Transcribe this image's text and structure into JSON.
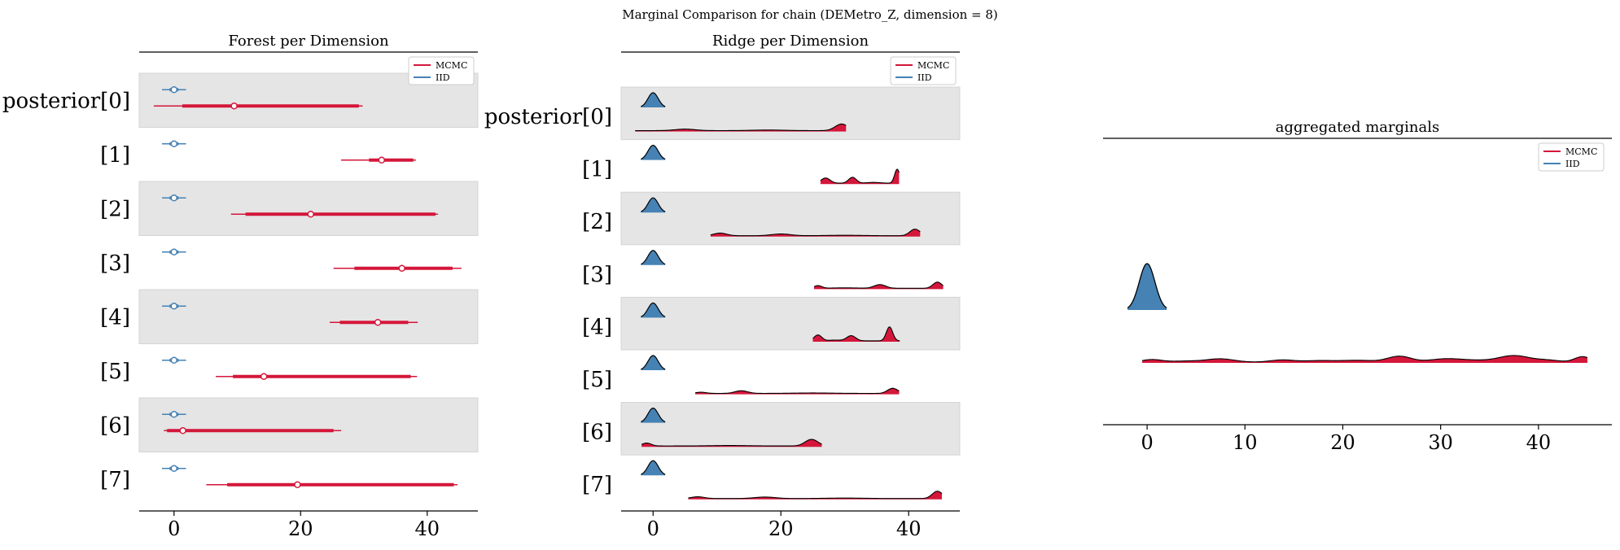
{
  "figure": {
    "suptitle": "Marginal Comparison for chain (DEMetro_Z, dimension = 8)"
  },
  "colors": {
    "mcmc": "#d4173a",
    "iid": "#4682b4",
    "band": "#e5e5e5",
    "axis": "#000000"
  },
  "chart_data": [
    {
      "type": "forest",
      "title": "Forest per Dimension",
      "row_labels": [
        "posterior[0]",
        "[1]",
        "[2]",
        "[3]",
        "[4]",
        "[5]",
        "[6]",
        "[7]"
      ],
      "xlim": [
        -5.5,
        48
      ],
      "xticks": [
        0,
        20,
        40
      ],
      "legend": {
        "entries": [
          "MCMC",
          "IID"
        ],
        "placement": "upper-right"
      },
      "series": [
        {
          "name": "MCMC",
          "color_key": "mcmc",
          "rows": [
            {
              "median": 9.5,
              "hdi_50": [
                1.3,
                29.2
              ],
              "hdi_94": [
                -3.2,
                29.8
              ]
            },
            {
              "median": 32.8,
              "hdi_50": [
                30.8,
                37.8
              ],
              "hdi_94": [
                26.4,
                38.2
              ]
            },
            {
              "median": 21.6,
              "hdi_50": [
                11.3,
                41.3
              ],
              "hdi_94": [
                9.0,
                41.7
              ]
            },
            {
              "median": 36.0,
              "hdi_50": [
                28.5,
                44.0
              ],
              "hdi_94": [
                25.2,
                45.4
              ]
            },
            {
              "median": 32.2,
              "hdi_50": [
                26.2,
                37.0
              ],
              "hdi_94": [
                24.6,
                38.5
              ]
            },
            {
              "median": 14.2,
              "hdi_50": [
                9.3,
                37.4
              ],
              "hdi_94": [
                6.6,
                38.4
              ]
            },
            {
              "median": 1.4,
              "hdi_50": [
                -1.1,
                25.2
              ],
              "hdi_94": [
                -1.6,
                26.4
              ]
            },
            {
              "median": 19.5,
              "hdi_50": [
                8.4,
                44.2
              ],
              "hdi_94": [
                5.1,
                44.8
              ]
            }
          ]
        },
        {
          "name": "IID",
          "color_key": "iid",
          "rows": [
            {
              "median": 0.0,
              "hdi_50": [
                -0.7,
                0.7
              ],
              "hdi_94": [
                -1.9,
                1.9
              ]
            },
            {
              "median": 0.0,
              "hdi_50": [
                -0.7,
                0.7
              ],
              "hdi_94": [
                -1.9,
                1.9
              ]
            },
            {
              "median": 0.0,
              "hdi_50": [
                -0.7,
                0.7
              ],
              "hdi_94": [
                -1.9,
                1.9
              ]
            },
            {
              "median": 0.0,
              "hdi_50": [
                -0.7,
                0.7
              ],
              "hdi_94": [
                -1.9,
                1.9
              ]
            },
            {
              "median": 0.0,
              "hdi_50": [
                -0.7,
                0.7
              ],
              "hdi_94": [
                -1.9,
                1.9
              ]
            },
            {
              "median": 0.0,
              "hdi_50": [
                -0.7,
                0.7
              ],
              "hdi_94": [
                -1.9,
                1.9
              ]
            },
            {
              "median": 0.0,
              "hdi_50": [
                -0.7,
                0.7
              ],
              "hdi_94": [
                -1.9,
                1.9
              ]
            },
            {
              "median": 0.0,
              "hdi_50": [
                -0.7,
                0.7
              ],
              "hdi_94": [
                -1.9,
                1.9
              ]
            }
          ]
        }
      ]
    },
    {
      "type": "ridge",
      "title": "Ridge per Dimension",
      "row_labels": [
        "posterior[0]",
        "[1]",
        "[2]",
        "[3]",
        "[4]",
        "[5]",
        "[6]",
        "[7]"
      ],
      "xlim": [
        -5,
        48
      ],
      "xticks": [
        0,
        20,
        40
      ],
      "legend": {
        "entries": [
          "MCMC",
          "IID"
        ],
        "placement": "upper-right"
      },
      "iid_density": {
        "mean": 0,
        "sd": 0.8,
        "range": [
          -1.9,
          1.9
        ]
      },
      "mcmc_rows": [
        {
          "range": [
            -2.8,
            30.2
          ],
          "bumps": [
            [
              5,
              1.6,
              0.1
            ],
            [
              29.5,
              1.0,
              0.45
            ],
            [
              18,
              2.5,
              0.04
            ]
          ]
        },
        {
          "range": [
            26.2,
            38.5
          ],
          "bumps": [
            [
              27.0,
              0.7,
              0.35
            ],
            [
              31.2,
              0.6,
              0.4
            ],
            [
              38.2,
              0.4,
              0.95
            ],
            [
              34.5,
              1.0,
              0.05
            ]
          ]
        },
        {
          "range": [
            9.0,
            41.8
          ],
          "bumps": [
            [
              10.5,
              1.0,
              0.18
            ],
            [
              20.0,
              1.5,
              0.12
            ],
            [
              41.0,
              0.8,
              0.45
            ],
            [
              30,
              3,
              0.03
            ]
          ]
        },
        {
          "range": [
            25.2,
            45.4
          ],
          "bumps": [
            [
              25.8,
              0.6,
              0.18
            ],
            [
              35.5,
              0.9,
              0.25
            ],
            [
              44.5,
              0.7,
              0.42
            ],
            [
              30,
              2,
              0.03
            ]
          ]
        },
        {
          "range": [
            25.0,
            38.6
          ],
          "bumps": [
            [
              25.8,
              0.6,
              0.4
            ],
            [
              31.0,
              0.7,
              0.35
            ],
            [
              37.0,
              0.5,
              0.95
            ],
            [
              28.5,
              1.0,
              0.05
            ]
          ]
        },
        {
          "range": [
            6.6,
            38.5
          ],
          "bumps": [
            [
              7.5,
              0.8,
              0.08
            ],
            [
              13.8,
              1.0,
              0.18
            ],
            [
              37.5,
              0.8,
              0.35
            ],
            [
              25,
              3,
              0.03
            ]
          ]
        },
        {
          "range": [
            -1.8,
            26.4
          ],
          "bumps": [
            [
              -1.0,
              0.7,
              0.2
            ],
            [
              24.8,
              1.0,
              0.45
            ],
            [
              12,
              3,
              0.03
            ]
          ]
        },
        {
          "range": [
            5.5,
            45.2
          ],
          "bumps": [
            [
              7.0,
              1.0,
              0.12
            ],
            [
              17.5,
              1.6,
              0.1
            ],
            [
              44.5,
              0.8,
              0.5
            ],
            [
              30,
              3,
              0.03
            ]
          ]
        }
      ]
    },
    {
      "type": "ridge",
      "title": "aggregated marginals",
      "xlim": [
        -4.5,
        47.5
      ],
      "xticks": [
        0,
        10,
        20,
        30,
        40
      ],
      "legend": {
        "entries": [
          "MCMC",
          "IID"
        ],
        "placement": "upper-right"
      },
      "iid_density": {
        "mean": 0,
        "sd": 0.8,
        "range": [
          -2.0,
          2.0
        ]
      },
      "mcmc_density": {
        "range": [
          -0.5,
          45.0
        ],
        "bumps": [
          [
            0.5,
            1.0,
            0.35
          ],
          [
            7.5,
            1.4,
            0.45
          ],
          [
            13.8,
            1.2,
            0.3
          ],
          [
            21.5,
            1.8,
            0.25
          ],
          [
            25.8,
            1.2,
            0.8
          ],
          [
            30.5,
            1.6,
            0.45
          ],
          [
            37.5,
            1.6,
            0.9
          ],
          [
            44.5,
            0.8,
            0.75
          ],
          [
            17.5,
            1.5,
            0.2
          ],
          [
            33.5,
            1.5,
            0.2
          ],
          [
            41.0,
            1.2,
            0.25
          ],
          [
            4.0,
            1.5,
            0.15
          ]
        ]
      }
    }
  ]
}
